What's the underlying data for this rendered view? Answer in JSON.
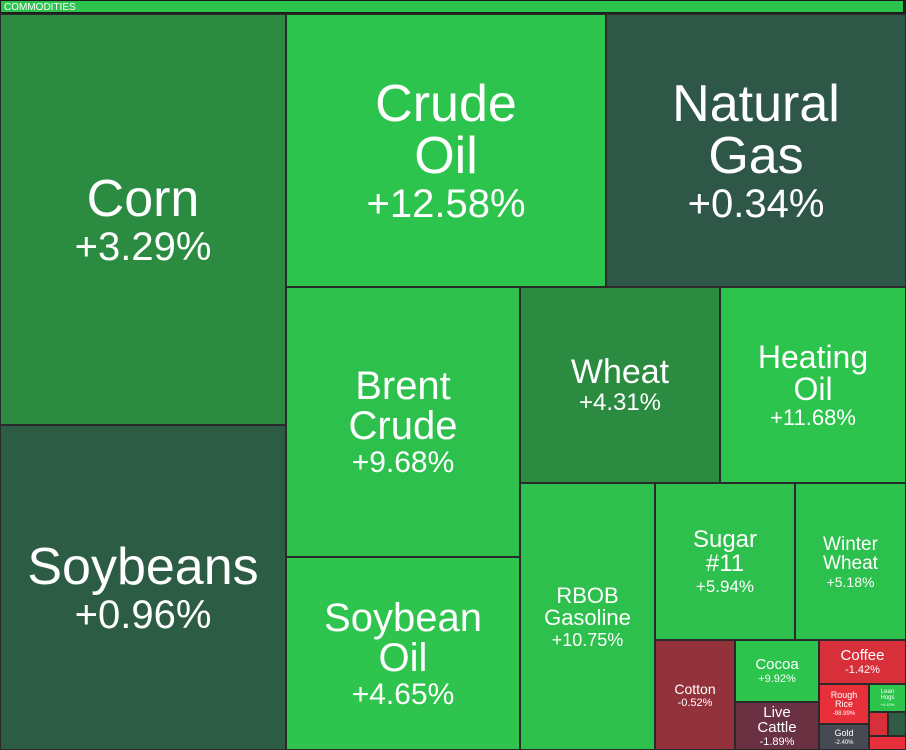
{
  "chart_data": {
    "type": "treemap",
    "title": "COMMODITIES",
    "categories": [
      "Corn",
      "Soybeans",
      "Crude Oil",
      "Natural Gas",
      "Brent Crude",
      "Soybean Oil",
      "Wheat",
      "Heating Oil",
      "RBOB Gasoline",
      "Sugar #11",
      "Winter Wheat",
      "Cotton",
      "Cocoa",
      "Live Cattle",
      "Coffee",
      "Rough Rice",
      "Lean Hogs",
      "Gold"
    ],
    "values": [
      3.29,
      0.96,
      12.58,
      0.34,
      9.68,
      4.65,
      4.31,
      11.68,
      10.75,
      5.94,
      5.18,
      -0.52,
      9.92,
      -1.89,
      -1.42,
      -98.99,
      0.1,
      -2.4
    ],
    "value_labels": [
      "+3.29%",
      "+0.96%",
      "+12.58%",
      "+0.34%",
      "+9.68%",
      "+4.65%",
      "+4.31%",
      "+11.68%",
      "+10.75%",
      "+5.94%",
      "+5.18%",
      "-0.52%",
      "+9.92%",
      "-1.89%",
      "-1.42%",
      "-98.99%",
      "+0.10%",
      "-2.40%"
    ],
    "colors": [
      "#2b8c41",
      "#2c5c44",
      "#2cc44d",
      "#2f5747",
      "#2dc04c",
      "#2ec44d",
      "#2b8c41",
      "#2dc44d",
      "#2dc04c",
      "#2dc04c",
      "#2cc04c",
      "#94323c",
      "#2cc44d",
      "#6a3142",
      "#d8303a",
      "#e8303a",
      "#2cc44d",
      "#464a52"
    ]
  }
}
